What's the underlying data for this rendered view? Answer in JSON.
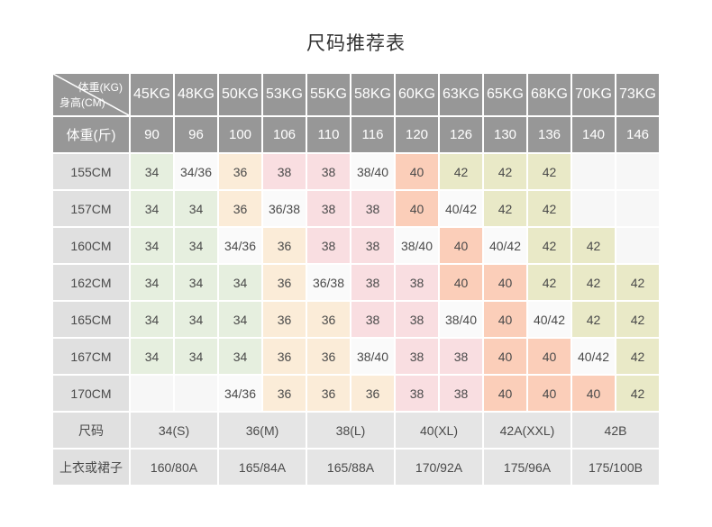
{
  "title": "尺码推荐表",
  "table": {
    "corner": {
      "top_right": "体重(KG)",
      "bottom_left": "身高(CM)"
    },
    "weight_kg": [
      "45KG",
      "48KG",
      "50KG",
      "53KG",
      "55KG",
      "58KG",
      "60KG",
      "63KG",
      "65KG",
      "68KG",
      "70KG",
      "73KG"
    ],
    "weight_jin_label": "体重(斤)",
    "weight_jin": [
      "90",
      "96",
      "100",
      "106",
      "110",
      "116",
      "120",
      "126",
      "130",
      "136",
      "140",
      "146"
    ],
    "height_rows": [
      {
        "height": "155CM",
        "cells": [
          "34",
          "34/36",
          "36",
          "38",
          "38",
          "38/40",
          "40",
          "42",
          "42",
          "42",
          "",
          ""
        ]
      },
      {
        "height": "157CM",
        "cells": [
          "34",
          "34",
          "36",
          "36/38",
          "38",
          "38",
          "40",
          "40/42",
          "42",
          "42",
          "",
          ""
        ]
      },
      {
        "height": "160CM",
        "cells": [
          "34",
          "34",
          "34/36",
          "36",
          "38",
          "38",
          "38/40",
          "40",
          "40/42",
          "42",
          "42",
          ""
        ]
      },
      {
        "height": "162CM",
        "cells": [
          "34",
          "34",
          "34",
          "36",
          "36/38",
          "38",
          "38",
          "40",
          "40",
          "42",
          "42",
          "42"
        ]
      },
      {
        "height": "165CM",
        "cells": [
          "34",
          "34",
          "34",
          "36",
          "36",
          "38",
          "38",
          "38/40",
          "40",
          "40/42",
          "42",
          "42"
        ]
      },
      {
        "height": "167CM",
        "cells": [
          "34",
          "34",
          "34",
          "36",
          "36",
          "38/40",
          "38",
          "38",
          "40",
          "40",
          "40/42",
          "42"
        ]
      },
      {
        "height": "170CM",
        "cells": [
          "",
          "",
          "34/36",
          "36",
          "36",
          "36",
          "38",
          "38",
          "40",
          "40",
          "40",
          "42"
        ]
      }
    ],
    "size_row": {
      "label": "尺码",
      "values": [
        "34(S)",
        "36(M)",
        "38(L)",
        "40(XL)",
        "42A(XXL)",
        "42B"
      ]
    },
    "spec_row": {
      "label": "上衣或裙子",
      "values": [
        "160/80A",
        "165/84A",
        "165/88A",
        "170/92A",
        "175/96A",
        "175/100B"
      ]
    }
  },
  "colors": {
    "header_bg": "#979797",
    "label_bg": "#e0e0e0",
    "merged_bg": "#e5e5e5",
    "size34_bg": "#e6efdf",
    "size36_bg": "#fbecd8",
    "size38_bg": "#f9dee1",
    "size40_bg": "#fbceb9",
    "size42_bg": "#e9e9c7",
    "mixed_bg": "#fafafa",
    "empty_bg": "#f7f7f7"
  }
}
